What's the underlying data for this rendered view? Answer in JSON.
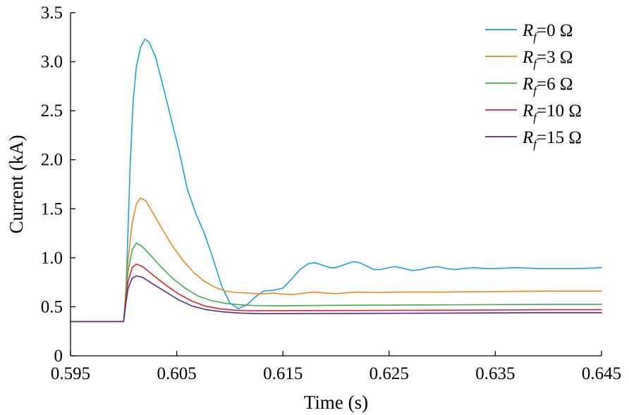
{
  "chart_data": {
    "type": "line",
    "title": "",
    "xlabel": "Time (s)",
    "ylabel": "Current (kA)",
    "xlim": [
      0.595,
      0.645
    ],
    "ylim": [
      0,
      3.5
    ],
    "x_ticks": [
      "0.595",
      "0.605",
      "0.615",
      "0.625",
      "0.635",
      "0.645"
    ],
    "y_ticks": [
      "0",
      "0.5",
      "1.0",
      "1.5",
      "2.0",
      "2.5",
      "3.0",
      "3.5"
    ],
    "grid": false,
    "legend_position": "top-right",
    "series": [
      {
        "name": "Rf=0 Ω",
        "label_main": "R",
        "label_sub": "f",
        "label_rest": "=0 Ω",
        "color": "#1aa3d8",
        "points": [
          [
            0.595,
            0.35
          ],
          [
            0.6,
            0.35
          ],
          [
            0.6001,
            0.42
          ],
          [
            0.6003,
            0.9
          ],
          [
            0.6006,
            1.9
          ],
          [
            0.6009,
            2.6
          ],
          [
            0.6012,
            2.95
          ],
          [
            0.6016,
            3.15
          ],
          [
            0.602,
            3.23
          ],
          [
            0.6024,
            3.2
          ],
          [
            0.603,
            3.05
          ],
          [
            0.6036,
            2.8
          ],
          [
            0.6044,
            2.45
          ],
          [
            0.6052,
            2.1
          ],
          [
            0.606,
            1.7
          ],
          [
            0.6068,
            1.45
          ],
          [
            0.6076,
            1.25
          ],
          [
            0.6084,
            1.0
          ],
          [
            0.6092,
            0.72
          ],
          [
            0.61,
            0.54
          ],
          [
            0.6108,
            0.48
          ],
          [
            0.6116,
            0.52
          ],
          [
            0.6124,
            0.6
          ],
          [
            0.6132,
            0.66
          ],
          [
            0.6142,
            0.67
          ],
          [
            0.615,
            0.69
          ],
          [
            0.6158,
            0.78
          ],
          [
            0.6166,
            0.88
          ],
          [
            0.6174,
            0.94
          ],
          [
            0.618,
            0.95
          ],
          [
            0.6186,
            0.93
          ],
          [
            0.6194,
            0.9
          ],
          [
            0.62,
            0.9
          ],
          [
            0.6208,
            0.93
          ],
          [
            0.6216,
            0.96
          ],
          [
            0.6222,
            0.95
          ],
          [
            0.623,
            0.91
          ],
          [
            0.6236,
            0.88
          ],
          [
            0.6242,
            0.88
          ],
          [
            0.625,
            0.9
          ],
          [
            0.6256,
            0.91
          ],
          [
            0.6264,
            0.89
          ],
          [
            0.6272,
            0.87
          ],
          [
            0.628,
            0.88
          ],
          [
            0.6288,
            0.9
          ],
          [
            0.6296,
            0.91
          ],
          [
            0.6304,
            0.89
          ],
          [
            0.6312,
            0.88
          ],
          [
            0.632,
            0.89
          ],
          [
            0.633,
            0.9
          ],
          [
            0.634,
            0.89
          ],
          [
            0.635,
            0.89
          ],
          [
            0.637,
            0.9
          ],
          [
            0.639,
            0.89
          ],
          [
            0.641,
            0.89
          ],
          [
            0.643,
            0.89
          ],
          [
            0.645,
            0.9
          ]
        ]
      },
      {
        "name": "Rf=3 Ω",
        "label_main": "R",
        "label_sub": "f",
        "label_rest": "=3 Ω",
        "color": "#e98a1f",
        "points": [
          [
            0.595,
            0.35
          ],
          [
            0.6,
            0.35
          ],
          [
            0.6001,
            0.5
          ],
          [
            0.6004,
            0.95
          ],
          [
            0.6008,
            1.35
          ],
          [
            0.6012,
            1.55
          ],
          [
            0.6016,
            1.61
          ],
          [
            0.6021,
            1.58
          ],
          [
            0.6028,
            1.45
          ],
          [
            0.6036,
            1.3
          ],
          [
            0.6046,
            1.12
          ],
          [
            0.6056,
            0.97
          ],
          [
            0.6066,
            0.85
          ],
          [
            0.6076,
            0.76
          ],
          [
            0.6086,
            0.7
          ],
          [
            0.6096,
            0.66
          ],
          [
            0.6106,
            0.645
          ],
          [
            0.6118,
            0.64
          ],
          [
            0.613,
            0.63
          ],
          [
            0.614,
            0.64
          ],
          [
            0.615,
            0.63
          ],
          [
            0.616,
            0.625
          ],
          [
            0.617,
            0.64
          ],
          [
            0.618,
            0.65
          ],
          [
            0.619,
            0.64
          ],
          [
            0.62,
            0.635
          ],
          [
            0.622,
            0.65
          ],
          [
            0.624,
            0.645
          ],
          [
            0.626,
            0.65
          ],
          [
            0.628,
            0.65
          ],
          [
            0.63,
            0.65
          ],
          [
            0.635,
            0.655
          ],
          [
            0.64,
            0.66
          ],
          [
            0.645,
            0.66
          ]
        ]
      },
      {
        "name": "Rf=6 Ω",
        "label_main": "R",
        "label_sub": "f",
        "label_rest": "=6 Ω",
        "color": "#3fae49",
        "points": [
          [
            0.595,
            0.35
          ],
          [
            0.6,
            0.35
          ],
          [
            0.6001,
            0.45
          ],
          [
            0.6004,
            0.85
          ],
          [
            0.6008,
            1.08
          ],
          [
            0.6012,
            1.15
          ],
          [
            0.6017,
            1.12
          ],
          [
            0.6025,
            1.03
          ],
          [
            0.6035,
            0.91
          ],
          [
            0.6046,
            0.79
          ],
          [
            0.6058,
            0.69
          ],
          [
            0.607,
            0.61
          ],
          [
            0.6082,
            0.565
          ],
          [
            0.6096,
            0.535
          ],
          [
            0.611,
            0.52
          ],
          [
            0.6125,
            0.512
          ],
          [
            0.614,
            0.51
          ],
          [
            0.62,
            0.515
          ],
          [
            0.63,
            0.52
          ],
          [
            0.64,
            0.525
          ],
          [
            0.645,
            0.525
          ]
        ]
      },
      {
        "name": "Rf=10 Ω",
        "label_main": "R",
        "label_sub": "f",
        "label_rest": "=10 Ω",
        "color": "#e0202e",
        "points": [
          [
            0.595,
            0.35
          ],
          [
            0.6,
            0.35
          ],
          [
            0.6001,
            0.45
          ],
          [
            0.6004,
            0.75
          ],
          [
            0.6008,
            0.9
          ],
          [
            0.6012,
            0.935
          ],
          [
            0.6018,
            0.91
          ],
          [
            0.6028,
            0.82
          ],
          [
            0.604,
            0.72
          ],
          [
            0.6052,
            0.63
          ],
          [
            0.6064,
            0.56
          ],
          [
            0.6076,
            0.51
          ],
          [
            0.609,
            0.48
          ],
          [
            0.6105,
            0.465
          ],
          [
            0.612,
            0.46
          ],
          [
            0.62,
            0.462
          ],
          [
            0.63,
            0.465
          ],
          [
            0.64,
            0.47
          ],
          [
            0.645,
            0.47
          ]
        ]
      },
      {
        "name": "Rf=15 Ω",
        "label_main": "R",
        "label_sub": "f",
        "label_rest": "=15 Ω",
        "color": "#5a2a8a",
        "points": [
          [
            0.595,
            0.35
          ],
          [
            0.6,
            0.35
          ],
          [
            0.6001,
            0.44
          ],
          [
            0.6004,
            0.68
          ],
          [
            0.6008,
            0.79
          ],
          [
            0.6012,
            0.815
          ],
          [
            0.6018,
            0.8
          ],
          [
            0.6028,
            0.73
          ],
          [
            0.604,
            0.65
          ],
          [
            0.6052,
            0.57
          ],
          [
            0.6064,
            0.51
          ],
          [
            0.6078,
            0.47
          ],
          [
            0.6092,
            0.45
          ],
          [
            0.611,
            0.435
          ],
          [
            0.613,
            0.43
          ],
          [
            0.62,
            0.432
          ],
          [
            0.63,
            0.435
          ],
          [
            0.64,
            0.44
          ],
          [
            0.645,
            0.44
          ]
        ]
      }
    ]
  }
}
